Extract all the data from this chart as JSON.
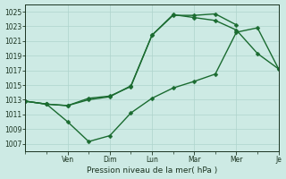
{
  "background_color": "#cdeae4",
  "grid_color": "#aed4cc",
  "line_color": "#1a6b30",
  "xlabel": "Pression niveau de la mer( hPa )",
  "ylim": [
    1006,
    1026
  ],
  "yticks": [
    1007,
    1009,
    1011,
    1013,
    1015,
    1017,
    1019,
    1021,
    1023,
    1025
  ],
  "xlim": [
    0,
    12
  ],
  "x_tick_positions": [
    2,
    4,
    6,
    8,
    10,
    12
  ],
  "x_tick_labels": [
    "Ven",
    "Dim",
    "Lun",
    "Mar",
    "Mer",
    "Je"
  ],
  "series1_x": [
    0,
    1,
    2,
    3,
    4,
    5,
    6,
    7,
    8,
    9,
    10,
    11,
    12
  ],
  "series1_y": [
    1012.8,
    1012.4,
    1012.2,
    1013.2,
    1013.5,
    1014.8,
    1021.8,
    1024.6,
    1024.2,
    1023.8,
    1022.5,
    1019.3,
    1017.2
  ],
  "series2_x": [
    0,
    1,
    2,
    3,
    4,
    5,
    6,
    7,
    8,
    9,
    10,
    11,
    12
  ],
  "series2_y": [
    1012.8,
    1012.4,
    1010.0,
    1007.3,
    1008.1,
    1011.2,
    1013.2,
    1014.6,
    1015.5,
    1016.5,
    1022.2,
    1022.8,
    1017.2
  ],
  "series3_x": [
    0,
    1,
    2,
    3,
    4,
    5,
    6,
    7,
    8,
    9,
    10
  ],
  "series3_y": [
    1012.8,
    1012.4,
    1012.2,
    1013.0,
    1013.4,
    1014.9,
    1021.8,
    1024.5,
    1024.5,
    1024.7,
    1023.2
  ],
  "marker_size": 2.5,
  "line_width": 1.0,
  "tick_label_fontsize": 5.5,
  "xlabel_fontsize": 6.5
}
